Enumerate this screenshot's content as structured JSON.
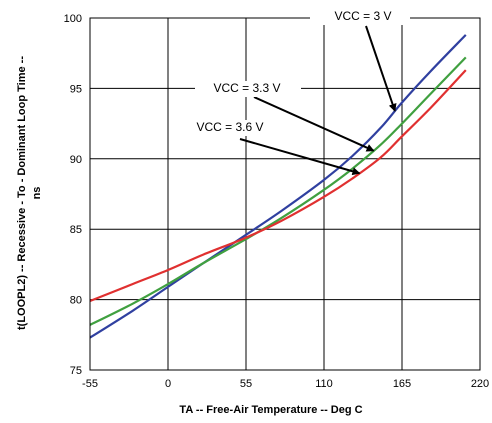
{
  "chart_data": {
    "type": "line",
    "title": "",
    "xlabel": "TA -- Free-Air Temperature -- Deg C",
    "ylabel": "t(LOOPL2) -- Recessive - To - Dominant Loop Time --",
    "ylabel_unit": "ns",
    "xlim": [
      -55,
      220
    ],
    "ylim": [
      75,
      100
    ],
    "xticks": [
      -55,
      0,
      55,
      110,
      165,
      220
    ],
    "yticks": [
      75,
      80,
      85,
      90,
      95,
      100
    ],
    "grid": true,
    "legend": "none",
    "series": [
      {
        "name": "VCC = 3 V",
        "color": "#3040a0",
        "x": [
          -55,
          -25,
          0,
          25,
          55,
          80,
          110,
          130,
          150,
          165,
          185,
          210
        ],
        "y": [
          77.3,
          79.2,
          80.9,
          82.6,
          84.6,
          86.3,
          88.5,
          90.2,
          92.2,
          94.0,
          96.2,
          98.8
        ]
      },
      {
        "name": "VCC = 3.3 V",
        "color": "#40a040",
        "x": [
          -55,
          -25,
          0,
          25,
          55,
          80,
          110,
          130,
          150,
          165,
          185,
          210
        ],
        "y": [
          78.2,
          79.7,
          81.1,
          82.6,
          84.3,
          85.8,
          87.8,
          89.3,
          91.0,
          92.5,
          94.6,
          97.2
        ]
      },
      {
        "name": "VCC = 3.6 V",
        "color": "#e03030",
        "x": [
          -55,
          -25,
          0,
          25,
          55,
          80,
          110,
          130,
          150,
          165,
          185,
          210
        ],
        "y": [
          79.9,
          81.1,
          82.1,
          83.2,
          84.4,
          85.6,
          87.3,
          88.6,
          90.1,
          91.6,
          93.6,
          96.3
        ]
      }
    ],
    "annotations": [
      {
        "text": "VCC = 3 V",
        "points_to": "VCC = 3 V"
      },
      {
        "text": "VCC = 3.3 V",
        "points_to": "VCC = 3.3 V"
      },
      {
        "text": "VCC = 3.6 V",
        "points_to": "VCC = 3.6 V"
      }
    ]
  }
}
